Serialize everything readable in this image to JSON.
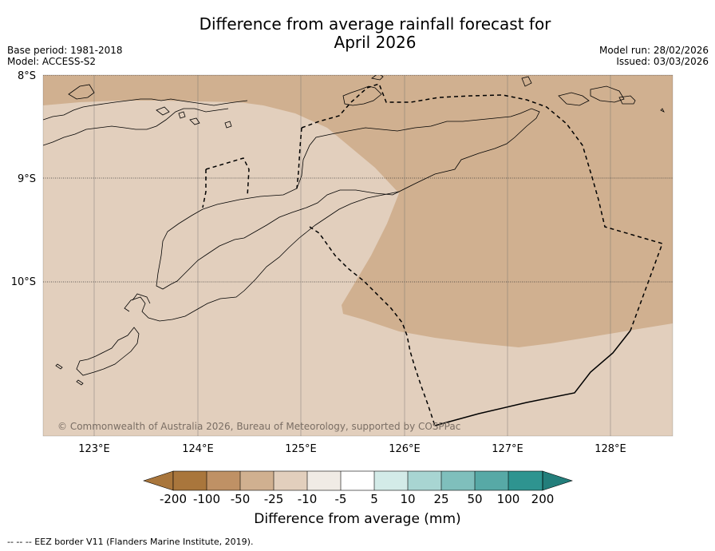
{
  "header": {
    "title_line1": "Difference from average rainfall forecast for",
    "title_line2": "April 2026",
    "base_period": "Base period: 1981-2018",
    "model": "Model: ACCESS-S2",
    "model_run": "Model run: 28/02/2026",
    "issued": "Issued: 03/03/2026"
  },
  "map": {
    "lat_labels": [
      "8°S",
      "9°S",
      "10°S"
    ],
    "lon_labels": [
      "123°E",
      "124°E",
      "125°E",
      "126°E",
      "127°E",
      "128°E"
    ],
    "copyright": "© Commonwealth of Australia 2026, Bureau of Meteorology, supported by COSPPac"
  },
  "colorbar": {
    "ticks": [
      "-200",
      "-100",
      "-50",
      "-25",
      "-10",
      "-5",
      "5",
      "10",
      "25",
      "50",
      "100",
      "200"
    ],
    "colors": [
      "#a9763c",
      "#bf9165",
      "#d0b090",
      "#e2cfbd",
      "#f0ebe5",
      "#ffffff",
      "#d3ebe8",
      "#a8d5d2",
      "#7fbfbc",
      "#57a9a6",
      "#2e9490",
      "#237e7b"
    ],
    "title": "Difference from average (mm)"
  },
  "footer": {
    "legend_text": "--  --  -- EEZ border V11 (Flanders Marine Institute, 2019)."
  }
}
